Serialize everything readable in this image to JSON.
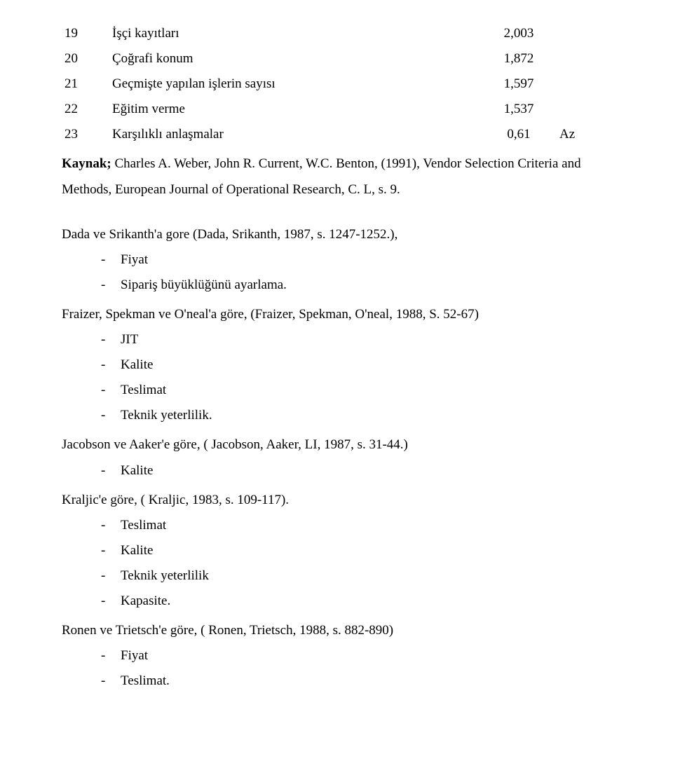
{
  "table": {
    "rows": [
      {
        "num": "19",
        "label": "İşçi kayıtları",
        "value": "2,003",
        "extra": ""
      },
      {
        "num": "20",
        "label": "Çoğrafi konum",
        "value": "1,872",
        "extra": ""
      },
      {
        "num": "21",
        "label": "Geçmişte yapılan işlerin sayısı",
        "value": "1,597",
        "extra": ""
      },
      {
        "num": "22",
        "label": "Eğitim verme",
        "value": "1,537",
        "extra": ""
      },
      {
        "num": "23",
        "label": "Karşılıklı anlaşmalar",
        "value": "0,61",
        "extra": "Az"
      }
    ]
  },
  "source": {
    "label": "Kaynak;",
    "text": " Charles A. Weber, John R. Current, W.C. Benton, (1991), Vendor Selection Criteria and Methods, European Journal of Operational Research, C. L, s. 9."
  },
  "sections": [
    {
      "intro": "Dada ve Srikanth'a gore (Dada, Srikanth, 1987, s. 1247-1252.),",
      "items": [
        "Fiyat",
        "Sipariş büyüklüğünü  ayarlama."
      ]
    },
    {
      "intro": "Fraizer, Spekman ve O'neal'a göre, (Fraizer, Spekman, O'neal, 1988, S. 52-67)",
      "items": [
        "JIT",
        "Kalite",
        "Teslimat",
        "Teknik yeterlilik."
      ]
    },
    {
      "intro": "Jacobson ve Aaker'e göre, ( Jacobson, Aaker, LI, 1987, s. 31-44.)",
      "items": [
        "Kalite"
      ]
    },
    {
      "intro": "Kraljic'e göre, ( Kraljic, 1983, s. 109-117).",
      "items": [
        "Teslimat",
        "Kalite",
        "Teknik yeterlilik",
        "Kapasite."
      ]
    },
    {
      "intro": "Ronen ve Trietsch'e göre, ( Ronen, Trietsch,  1988, s. 882-890)",
      "items": [
        "Fiyat",
        "Teslimat."
      ]
    }
  ]
}
